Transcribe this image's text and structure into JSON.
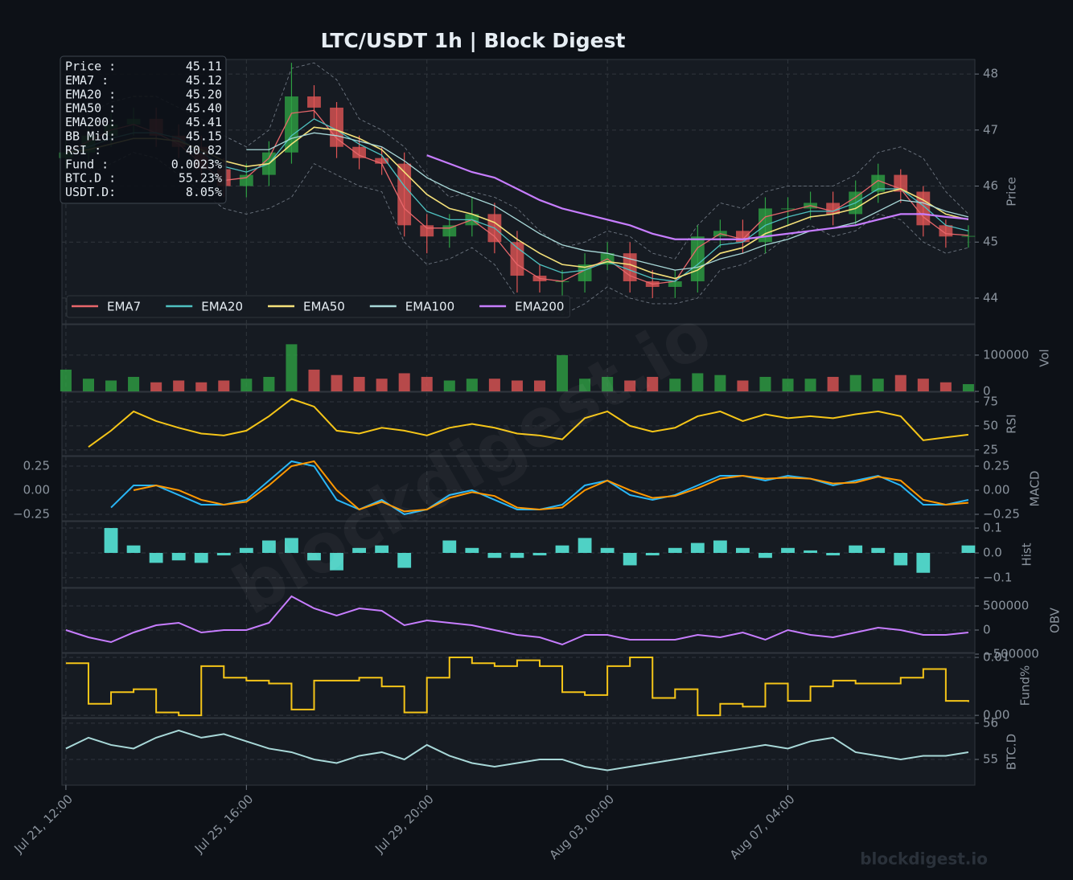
{
  "title": "LTC/USDT  1h  |  Block Digest",
  "watermark": "blockdigest.io",
  "footer": "blockdigest.io",
  "info_box": [
    {
      "label": "Price :",
      "value": "45.11"
    },
    {
      "label": "EMA7  :",
      "value": "45.12"
    },
    {
      "label": "EMA20 :",
      "value": "45.20"
    },
    {
      "label": "EMA50 :",
      "value": "45.40"
    },
    {
      "label": "EMA200:",
      "value": "45.41"
    },
    {
      "label": "BB Mid:",
      "value": "45.15"
    },
    {
      "label": "RSI   :",
      "value": "40.82"
    },
    {
      "label": "Fund  :",
      "value": "0.0023%"
    },
    {
      "label": "BTC.D :",
      "value": "55.23%"
    },
    {
      "label": "USDT.D:",
      "value": "8.05%"
    }
  ],
  "x_axis": {
    "x": [
      0,
      12.5,
      25,
      37.5,
      50,
      62.5,
      75,
      87.5,
      100,
      112.5,
      125,
      137.5,
      150,
      162.5,
      175,
      187.5,
      200,
      212.5,
      225,
      237.5,
      250,
      262.5,
      275,
      287.5,
      300,
      312.5,
      325,
      337.5,
      350,
      362.5,
      375,
      387.5,
      400,
      412.5,
      425,
      437.5,
      450,
      462.5,
      475,
      487.5,
      500
    ],
    "xlim": [
      -2.2,
      503.6
    ],
    "xticks": [
      {
        "value": 0,
        "label": "Jul 21, 12:00"
      },
      {
        "value": 100,
        "label": "Jul 25, 16:00"
      },
      {
        "value": 200,
        "label": "Jul 29, 20:00"
      },
      {
        "value": 300,
        "label": "Aug 03, 00:00"
      },
      {
        "value": 400,
        "label": "Aug 07, 04:00"
      }
    ]
  },
  "chart_data": [
    {
      "type": "candlestick",
      "ylabel": "Price",
      "ylim": [
        43.54,
        48.26
      ],
      "yticks": [
        44,
        45,
        46,
        47,
        48
      ],
      "grid": true,
      "legend": "lower left",
      "candles": {
        "up_color": "#2ea043",
        "down_color": "#e05555",
        "open": [
          46.5,
          46.6,
          46.9,
          47.1,
          47.2,
          46.9,
          46.7,
          46.3,
          46.0,
          46.2,
          46.6,
          47.6,
          47.4,
          46.7,
          46.5,
          46.4,
          45.3,
          45.1,
          45.3,
          45.5,
          45.0,
          44.4,
          44.3,
          44.3,
          44.6,
          44.8,
          44.3,
          44.2,
          44.3,
          45.1,
          45.2,
          45.0,
          45.6,
          45.6,
          45.7,
          45.5,
          45.9,
          46.2,
          45.9,
          45.3,
          45.1
        ],
        "high": [
          46.8,
          47.1,
          47.3,
          47.4,
          47.4,
          47.1,
          46.9,
          46.5,
          46.4,
          46.8,
          48.2,
          47.8,
          47.5,
          46.9,
          46.7,
          46.6,
          45.5,
          45.5,
          45.8,
          45.7,
          45.2,
          44.6,
          44.5,
          44.8,
          45.0,
          45.0,
          44.5,
          44.5,
          45.3,
          45.4,
          45.4,
          45.8,
          45.8,
          45.9,
          45.9,
          46.1,
          46.4,
          46.3,
          46.0,
          45.4,
          45.3
        ],
        "low": [
          46.3,
          46.4,
          46.7,
          46.9,
          46.7,
          46.5,
          46.1,
          45.8,
          45.8,
          46.0,
          46.4,
          47.2,
          46.5,
          46.3,
          46.2,
          45.1,
          44.8,
          44.9,
          45.1,
          44.8,
          44.1,
          44.1,
          43.7,
          44.1,
          44.5,
          44.1,
          44.0,
          44.0,
          44.1,
          44.9,
          44.8,
          44.8,
          45.3,
          45.4,
          45.3,
          45.3,
          45.7,
          45.7,
          45.1,
          44.9,
          44.9
        ],
        "close": [
          46.6,
          46.9,
          47.1,
          47.2,
          46.9,
          46.7,
          46.3,
          46.0,
          46.2,
          46.6,
          47.6,
          47.4,
          46.7,
          46.5,
          46.4,
          45.3,
          45.1,
          45.3,
          45.5,
          45.0,
          44.4,
          44.3,
          44.3,
          44.6,
          44.8,
          44.3,
          44.2,
          44.3,
          45.1,
          45.2,
          45.0,
          45.6,
          45.6,
          45.7,
          45.5,
          45.9,
          46.2,
          45.9,
          45.3,
          45.1,
          45.11
        ]
      },
      "bollinger": {
        "color": "#6e7681",
        "upper": [
          47.1,
          47.3,
          47.5,
          47.6,
          47.6,
          47.4,
          47.2,
          46.9,
          46.7,
          47.0,
          48.1,
          48.2,
          47.9,
          47.2,
          47.0,
          46.7,
          46.2,
          45.8,
          45.9,
          45.8,
          45.6,
          45.2,
          44.9,
          45.0,
          45.2,
          45.1,
          44.8,
          44.7,
          45.3,
          45.7,
          45.6,
          45.9,
          46.0,
          46.0,
          46.0,
          46.2,
          46.6,
          46.7,
          46.5,
          45.9,
          45.5
        ],
        "lower": [
          46.1,
          46.2,
          46.4,
          46.6,
          46.5,
          46.2,
          45.9,
          45.6,
          45.5,
          45.6,
          45.8,
          46.4,
          46.2,
          46.0,
          45.9,
          45.0,
          44.6,
          44.7,
          44.9,
          44.6,
          44.0,
          43.8,
          43.7,
          43.9,
          44.2,
          44.0,
          43.9,
          43.9,
          44.0,
          44.5,
          44.6,
          44.8,
          45.1,
          45.3,
          45.1,
          45.2,
          45.5,
          45.4,
          45.0,
          44.8,
          44.9
        ]
      },
      "series": [
        {
          "name": "EMA7",
          "color": "#e8676b",
          "width": 1.3,
          "values": [
            46.6,
            46.8,
            47.0,
            47.1,
            46.95,
            46.75,
            46.4,
            46.1,
            46.15,
            46.5,
            47.3,
            47.35,
            46.85,
            46.55,
            46.4,
            45.6,
            45.25,
            45.25,
            45.4,
            45.1,
            44.6,
            44.35,
            44.3,
            44.5,
            44.7,
            44.4,
            44.25,
            44.3,
            44.9,
            45.15,
            45.05,
            45.45,
            45.55,
            45.65,
            45.55,
            45.8,
            46.1,
            45.95,
            45.45,
            45.15,
            45.12
          ]
        },
        {
          "name": "EMA20",
          "color": "#4fc1c0",
          "width": 1.3,
          "values": [
            46.6,
            46.7,
            46.85,
            46.95,
            46.95,
            46.85,
            46.6,
            46.35,
            46.25,
            46.4,
            46.9,
            47.2,
            47.0,
            46.75,
            46.55,
            46.0,
            45.55,
            45.4,
            45.4,
            45.25,
            44.9,
            44.6,
            44.45,
            44.5,
            44.65,
            44.5,
            44.35,
            44.3,
            44.6,
            44.95,
            45.0,
            45.3,
            45.45,
            45.55,
            45.55,
            45.7,
            45.95,
            45.95,
            45.65,
            45.3,
            45.2
          ]
        },
        {
          "name": "EMA50",
          "color": "#f5e17a",
          "width": 1.6,
          "values": [
            46.6,
            46.65,
            46.75,
            46.85,
            46.85,
            46.8,
            46.65,
            46.45,
            46.35,
            46.4,
            46.75,
            47.05,
            47.0,
            46.85,
            46.65,
            46.25,
            45.85,
            45.6,
            45.5,
            45.35,
            45.05,
            44.8,
            44.6,
            44.55,
            44.65,
            44.6,
            44.45,
            44.35,
            44.5,
            44.8,
            44.9,
            45.15,
            45.3,
            45.45,
            45.5,
            45.6,
            45.85,
            45.95,
            45.75,
            45.5,
            45.4
          ]
        },
        {
          "name": "EMA100",
          "color": "#a8d8d8",
          "width": 1.3,
          "values": [
            null,
            null,
            null,
            null,
            null,
            null,
            null,
            null,
            46.65,
            46.65,
            46.85,
            46.95,
            46.9,
            46.8,
            46.7,
            46.45,
            46.15,
            45.95,
            45.8,
            45.65,
            45.4,
            45.15,
            44.95,
            44.85,
            44.8,
            44.7,
            44.6,
            44.5,
            44.55,
            44.7,
            44.8,
            44.95,
            45.05,
            45.2,
            45.25,
            45.35,
            45.55,
            45.75,
            45.7,
            45.55,
            45.45
          ]
        },
        {
          "name": "EMA200",
          "color": "#c77dff",
          "width": 2.2,
          "values": [
            null,
            null,
            null,
            null,
            null,
            null,
            null,
            null,
            null,
            null,
            null,
            null,
            null,
            null,
            null,
            null,
            46.55,
            46.4,
            46.25,
            46.15,
            45.95,
            45.75,
            45.6,
            45.5,
            45.4,
            45.3,
            45.15,
            45.05,
            45.05,
            45.05,
            45.05,
            45.1,
            45.15,
            45.2,
            45.25,
            45.3,
            45.4,
            45.5,
            45.5,
            45.45,
            45.41
          ]
        }
      ]
    },
    {
      "type": "volume",
      "ylabel": "Vol",
      "ylim": [
        0,
        184000
      ],
      "yticks": [
        0,
        100000
      ],
      "grid": true,
      "values": [
        60000,
        35000,
        30000,
        40000,
        25000,
        30000,
        25000,
        30000,
        35000,
        40000,
        130000,
        60000,
        45000,
        40000,
        35000,
        50000,
        40000,
        30000,
        35000,
        35000,
        30000,
        30000,
        100000,
        35000,
        40000,
        30000,
        40000,
        35000,
        50000,
        45000,
        30000,
        40000,
        35000,
        35000,
        40000,
        45000,
        35000,
        45000,
        35000,
        25000,
        20000
      ]
    },
    {
      "type": "line",
      "ylabel": "RSI",
      "ylim": [
        19,
        85
      ],
      "yticks": [
        25,
        50,
        75
      ],
      "grid": true,
      "series": [
        {
          "color": "#f5c518",
          "values": [
            null,
            28,
            45,
            65,
            55,
            48,
            42,
            40,
            45,
            60,
            78,
            70,
            45,
            42,
            48,
            45,
            40,
            48,
            52,
            48,
            42,
            40,
            36,
            58,
            65,
            50,
            44,
            48,
            60,
            65,
            55,
            62,
            58,
            60,
            58,
            62,
            65,
            60,
            35,
            38,
            40.82
          ]
        }
      ]
    },
    {
      "type": "line",
      "ylabel": "MACD",
      "ylim": [
        -0.317,
        0.35
      ],
      "yticks": [
        {
          "value": -0.25,
          "label": "−0.25"
        },
        {
          "value": 0,
          "label": "0.00"
        },
        0.25
      ],
      "grid": true,
      "left_ticks": true,
      "series": [
        {
          "color": "#29b6f6",
          "values": [
            null,
            null,
            -0.18,
            0.05,
            0.05,
            -0.05,
            -0.15,
            -0.15,
            -0.1,
            0.1,
            0.3,
            0.25,
            -0.1,
            -0.2,
            -0.1,
            -0.25,
            -0.2,
            -0.05,
            0.0,
            -0.1,
            -0.2,
            -0.2,
            -0.15,
            0.05,
            0.1,
            -0.05,
            -0.1,
            -0.05,
            0.05,
            0.15,
            0.15,
            0.1,
            0.15,
            0.12,
            0.05,
            0.1,
            0.15,
            0.05,
            -0.15,
            -0.15,
            -0.1
          ]
        },
        {
          "color": "#ff9800",
          "values": [
            null,
            null,
            null,
            0.0,
            0.05,
            0.0,
            -0.1,
            -0.15,
            -0.12,
            0.05,
            0.25,
            0.3,
            0.0,
            -0.2,
            -0.12,
            -0.22,
            -0.2,
            -0.08,
            -0.02,
            -0.06,
            -0.18,
            -0.2,
            -0.18,
            0.0,
            0.1,
            0.0,
            -0.08,
            -0.06,
            0.02,
            0.12,
            0.15,
            0.12,
            0.13,
            0.12,
            0.07,
            0.08,
            0.14,
            0.1,
            -0.1,
            -0.15,
            -0.13
          ]
        }
      ]
    },
    {
      "type": "bar",
      "ylabel": "Hist",
      "ylim": [
        -0.139,
        0.126
      ],
      "yticks": [
        {
          "value": -0.1,
          "label": "−0.1"
        },
        {
          "value": 0,
          "label": "0.0"
        },
        0.1
      ],
      "grid": true,
      "color": "#4fd1c5",
      "values": [
        null,
        null,
        0.1,
        0.03,
        -0.04,
        -0.03,
        -0.04,
        -0.01,
        0.02,
        0.05,
        0.06,
        -0.03,
        -0.07,
        0.02,
        0.03,
        -0.06,
        0.0,
        0.05,
        0.02,
        -0.02,
        -0.02,
        -0.01,
        0.03,
        0.06,
        0.02,
        -0.05,
        -0.01,
        0.02,
        0.04,
        0.05,
        0.02,
        -0.02,
        0.02,
        0.01,
        -0.01,
        0.03,
        0.02,
        -0.05,
        -0.08,
        0.0,
        0.03
      ]
    },
    {
      "type": "line",
      "ylabel": "OBV",
      "ylim": [
        -467000,
        867000
      ],
      "yticks": [
        {
          "value": -500000,
          "label": "−500000"
        },
        0,
        500000
      ],
      "grid": true,
      "series": [
        {
          "color": "#c77dff",
          "values": [
            0,
            -150000,
            -250000,
            -50000,
            100000,
            150000,
            -50000,
            0,
            0,
            150000,
            700000,
            450000,
            300000,
            450000,
            400000,
            100000,
            200000,
            150000,
            100000,
            0,
            -100000,
            -150000,
            -300000,
            -100000,
            -100000,
            -200000,
            -200000,
            -200000,
            -100000,
            -150000,
            -50000,
            -200000,
            0,
            -100000,
            -150000,
            -50000,
            50000,
            0,
            -100000,
            -100000,
            -50000
          ]
        }
      ]
    },
    {
      "type": "line",
      "ylabel": "Fund%",
      "ylim": [
        -0.0004,
        0.0107
      ],
      "yticks": [
        {
          "value": 0,
          "label": "0.00"
        },
        0.01
      ],
      "grid": true,
      "step": true,
      "series": [
        {
          "color": "#f5c518",
          "values": [
            0.009,
            0.002,
            0.004,
            0.0045,
            0.0005,
            0.0,
            0.0085,
            0.0065,
            0.006,
            0.0055,
            0.001,
            0.006,
            0.006,
            0.0065,
            0.005,
            0.0005,
            0.0065,
            0.01,
            0.009,
            0.0085,
            0.0095,
            0.0085,
            0.004,
            0.0035,
            0.0085,
            0.01,
            0.003,
            0.0045,
            0.0,
            0.002,
            0.0015,
            0.0055,
            0.0025,
            0.005,
            0.006,
            0.0055,
            0.0055,
            0.0065,
            0.008,
            0.0025,
            0.0023
          ]
        }
      ]
    },
    {
      "type": "line",
      "ylabel": "BTC.D",
      "ylim": [
        54.29,
        56.13
      ],
      "yticks": [
        55,
        56
      ],
      "grid": true,
      "series": [
        {
          "color": "#a8d8d8",
          "values": [
            55.3,
            55.6,
            55.4,
            55.3,
            55.6,
            55.8,
            55.6,
            55.7,
            55.5,
            55.3,
            55.2,
            55.0,
            54.9,
            55.1,
            55.2,
            55.0,
            55.4,
            55.1,
            54.9,
            54.8,
            54.9,
            55.0,
            55.0,
            54.8,
            54.7,
            54.8,
            54.9,
            55.0,
            55.1,
            55.2,
            55.3,
            55.4,
            55.3,
            55.5,
            55.6,
            55.2,
            55.1,
            55.0,
            55.1,
            55.1,
            55.2
          ]
        }
      ]
    }
  ]
}
